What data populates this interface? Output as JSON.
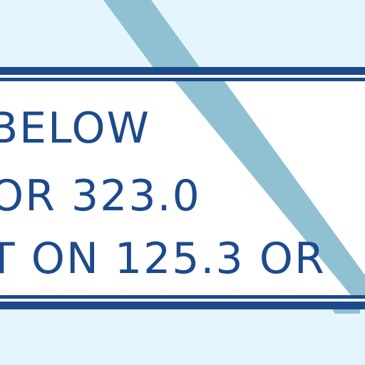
{
  "chart_note": {
    "lines": [
      "BELOW",
      "OR 323.0",
      "T ON 125.3 OR"
    ]
  },
  "colors": {
    "background": "#e4f6fc",
    "border": "#1d4a8c",
    "text": "#1d4a8c",
    "route_line": "#8fc1d3",
    "box_fill": "#ffffff"
  }
}
